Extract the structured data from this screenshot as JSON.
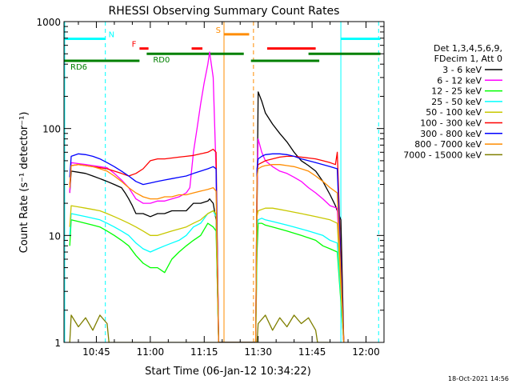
{
  "chart_data": {
    "type": "line",
    "title": "RHESSI Observing Summary Count Rates",
    "xlabel": "Start Time (06-Jan-12 10:34:22)",
    "ylabel": "Count Rate (s⁻¹ detector⁻¹)",
    "y_scale": "log",
    "ylim": [
      1,
      1000
    ],
    "xlim": [
      36,
      125
    ],
    "xlim_units": "minutes after 10:00 UT, 06-Jan-12",
    "xticks": [
      {
        "value": 45,
        "label": "10:45"
      },
      {
        "value": 60,
        "label": "11:00"
      },
      {
        "value": 75,
        "label": "11:15"
      },
      {
        "value": 90,
        "label": "11:30"
      },
      {
        "value": 105,
        "label": "11:45"
      },
      {
        "value": 120,
        "label": "12:00"
      }
    ],
    "yticks": [
      {
        "value": 1,
        "label": "1"
      },
      {
        "value": 10,
        "label": "10"
      },
      {
        "value": 100,
        "label": "100"
      },
      {
        "value": 1000,
        "label": "1000"
      }
    ],
    "legend": {
      "placement": "right",
      "header": [
        "Det 1,3,4,5,6,9,",
        "FDecim 1, Att 0"
      ]
    },
    "timestamp": "18-Oct-2021 14:56",
    "series": [
      {
        "name": "3 - 6 keV",
        "color": "#000000",
        "x": [
          37.6,
          38,
          40,
          42,
          44,
          46,
          48,
          50,
          52,
          53,
          54,
          55,
          56,
          58,
          60,
          62,
          64,
          66,
          68,
          70,
          72,
          74,
          76,
          76.5,
          77.5,
          78.3,
          79,
          80,
          86,
          89.3,
          89.7,
          90,
          91,
          92,
          94,
          96,
          98,
          100,
          102,
          104,
          106,
          108,
          110,
          111.5,
          112,
          113,
          113.8
        ],
        "y": [
          25,
          40,
          39,
          38,
          36,
          34,
          32,
          30,
          28,
          25,
          22,
          19,
          16,
          16,
          15,
          16,
          16,
          17,
          17,
          17,
          20,
          20,
          21,
          22,
          20,
          14,
          1,
          1,
          1,
          1,
          17,
          220,
          180,
          140,
          110,
          90,
          75,
          60,
          50,
          45,
          40,
          32,
          24,
          19,
          17,
          14,
          1
        ]
      },
      {
        "name": "6 - 12 keV",
        "color": "#ff00ff",
        "x": [
          37.6,
          38,
          40,
          42,
          44,
          46,
          48,
          50,
          52,
          54,
          56,
          58,
          60,
          62,
          64,
          66,
          68,
          70,
          71,
          72,
          73,
          74,
          75,
          76,
          76.5,
          77.5,
          78.3,
          79,
          80,
          86,
          89.3,
          89.7,
          90,
          91,
          92,
          94,
          96,
          98,
          100,
          102,
          104,
          106,
          108,
          110,
          112,
          113.8
        ],
        "y": [
          25,
          48,
          47,
          46,
          45,
          44,
          43,
          38,
          33,
          28,
          22,
          20,
          20,
          21,
          21,
          22,
          23,
          25,
          28,
          60,
          100,
          170,
          270,
          400,
          520,
          300,
          40,
          1,
          1,
          1,
          1,
          25,
          80,
          60,
          50,
          44,
          40,
          38,
          35,
          32,
          28,
          25,
          22,
          19,
          18,
          1
        ]
      },
      {
        "name": "12 - 25 keV",
        "color": "#00ff00",
        "x": [
          37.6,
          38,
          40,
          42,
          44,
          46,
          48,
          50,
          52,
          54,
          56,
          58,
          60,
          62,
          64,
          66,
          68,
          70,
          72,
          74,
          76,
          77.5,
          78.3,
          79,
          80,
          86,
          89.3,
          89.7,
          90,
          91,
          92,
          94,
          96,
          98,
          100,
          102,
          104,
          106,
          108,
          110,
          112,
          113.8
        ],
        "y": [
          8,
          14,
          13.5,
          13,
          12.5,
          12,
          11,
          10,
          9,
          8,
          6.5,
          5.5,
          5,
          5,
          4.5,
          6,
          7,
          8,
          9,
          10,
          13,
          12,
          11,
          1,
          1,
          1,
          1,
          7,
          13,
          13,
          12.5,
          12,
          11.5,
          11,
          10.5,
          10,
          9.5,
          9,
          8,
          7.5,
          7,
          1
        ]
      },
      {
        "name": "25 - 50 keV",
        "color": "#00ffff",
        "x": [
          37.6,
          38,
          40,
          42,
          44,
          46,
          48,
          50,
          52,
          54,
          56,
          58,
          60,
          62,
          64,
          66,
          68,
          70,
          72,
          74,
          76,
          77.5,
          78.3,
          79,
          80,
          86,
          89.3,
          89.7,
          90,
          91,
          92,
          94,
          96,
          98,
          100,
          102,
          104,
          106,
          108,
          110,
          112,
          113.8
        ],
        "y": [
          10,
          16,
          15.5,
          15,
          14.5,
          14,
          13,
          12,
          11,
          10,
          8.5,
          7.5,
          7,
          7.5,
          8,
          8.5,
          9,
          10,
          12,
          13,
          16,
          17,
          15,
          1,
          1,
          1,
          1,
          12,
          14,
          14.5,
          14,
          13.5,
          13,
          12.5,
          12,
          11.5,
          11,
          10.5,
          10,
          9,
          8.5,
          1
        ]
      },
      {
        "name": "50 - 100 keV",
        "color": "#c8c800",
        "x": [
          37.6,
          38,
          40,
          42,
          44,
          46,
          48,
          50,
          52,
          54,
          56,
          58,
          60,
          62,
          64,
          66,
          68,
          70,
          72,
          74,
          76,
          77.5,
          78.3,
          79,
          80,
          86,
          89.3,
          89.7,
          90,
          91,
          92,
          94,
          96,
          98,
          100,
          102,
          104,
          106,
          108,
          110,
          112,
          113.8
        ],
        "y": [
          12,
          19,
          18.5,
          18,
          17.5,
          17,
          16,
          15,
          14,
          13,
          12,
          11,
          10,
          10,
          10.5,
          11,
          11.5,
          12,
          13,
          14,
          16,
          17,
          16,
          1,
          1,
          1,
          1,
          15,
          17,
          17.5,
          18,
          18,
          17.5,
          17,
          16.5,
          16,
          15.5,
          15,
          14.5,
          14,
          13,
          1
        ]
      },
      {
        "name": "100 - 300 keV",
        "color": "#ff0000",
        "x": [
          37.6,
          38,
          40,
          42,
          44,
          46,
          48,
          50,
          52,
          54,
          56,
          58,
          60,
          62,
          64,
          66,
          68,
          70,
          72,
          74,
          76,
          77.5,
          78.3,
          79,
          80,
          86,
          89.3,
          89.7,
          90,
          91,
          92,
          94,
          96,
          98,
          100,
          102,
          104,
          106,
          108,
          110,
          111.5,
          112,
          113.8
        ],
        "y": [
          30,
          45,
          46,
          45,
          44,
          43,
          42,
          40,
          38,
          36,
          38,
          42,
          50,
          52,
          52,
          53,
          54,
          55,
          56,
          58,
          60,
          64,
          60,
          1,
          1,
          1,
          1,
          40,
          46,
          48,
          50,
          52,
          54,
          55,
          55,
          54,
          53,
          52,
          50,
          48,
          46,
          60,
          1
        ]
      },
      {
        "name": "300 - 800 keV",
        "color": "#0000ff",
        "x": [
          37.6,
          38,
          40,
          42,
          44,
          46,
          48,
          50,
          52,
          54,
          56,
          58,
          60,
          62,
          64,
          66,
          68,
          70,
          72,
          74,
          76,
          77.5,
          78.3,
          79,
          80,
          86,
          89.3,
          89.7,
          90,
          91,
          92,
          94,
          96,
          98,
          100,
          102,
          104,
          106,
          108,
          110,
          112,
          113.8
        ],
        "y": [
          35,
          55,
          58,
          57,
          55,
          52,
          48,
          44,
          40,
          36,
          32,
          30,
          31,
          32,
          33,
          34,
          35,
          36,
          38,
          40,
          42,
          44,
          42,
          1,
          1,
          1,
          1,
          42,
          52,
          55,
          57,
          58,
          58,
          57,
          55,
          52,
          50,
          48,
          46,
          44,
          42,
          1
        ]
      },
      {
        "name": "800 - 7000 keV",
        "color": "#ff8c00",
        "x": [
          37.6,
          38,
          40,
          42,
          44,
          46,
          48,
          50,
          52,
          54,
          56,
          58,
          60,
          62,
          64,
          66,
          68,
          70,
          72,
          74,
          76,
          77.5,
          78.3,
          79,
          80,
          86,
          89.3,
          89.7,
          90,
          91,
          92,
          94,
          96,
          98,
          100,
          102,
          104,
          106,
          108,
          110,
          112,
          113.8
        ],
        "y": [
          28,
          45,
          46,
          45,
          44,
          42,
          40,
          36,
          32,
          28,
          25,
          23,
          22,
          22,
          23,
          23,
          24,
          24,
          25,
          26,
          27,
          28,
          26,
          1,
          1,
          1,
          1,
          35,
          42,
          44,
          45,
          46,
          46,
          45,
          44,
          42,
          40,
          36,
          32,
          28,
          25,
          1
        ]
      },
      {
        "name": "7000 - 15000 keV",
        "color": "#7f7f00",
        "x": [
          37.6,
          38,
          40,
          42,
          44,
          46,
          48,
          48.5,
          49,
          50,
          86,
          88,
          89.7,
          90,
          92,
          94,
          96,
          98,
          100,
          102,
          104,
          106,
          106.5,
          107,
          110
        ],
        "y": [
          1,
          1.8,
          1.4,
          1.7,
          1.3,
          1.8,
          1.5,
          1,
          1,
          1,
          1,
          1,
          1,
          1.5,
          1.8,
          1.3,
          1.7,
          1.4,
          1.8,
          1.5,
          1.7,
          1.3,
          1,
          1,
          1
        ]
      }
    ],
    "annotations": [
      {
        "label": "N",
        "color": "#00ffff",
        "segments": [
          [
            36,
            47.5
          ],
          [
            113,
            124
          ]
        ],
        "level": 690
      },
      {
        "label": "F",
        "color": "#ff0000",
        "segments": [
          [
            57,
            59.5
          ]
        ],
        "level": 560
      },
      {
        "label": "",
        "color": "#ff0000",
        "segments": [
          [
            71.5,
            74.5
          ],
          [
            92.5,
            106
          ]
        ],
        "level": 560
      },
      {
        "label": "S",
        "color": "#ff8c00",
        "segments": [
          [
            80.5,
            87.5
          ]
        ],
        "level": 760
      },
      {
        "label": "RD0",
        "color": "#008000",
        "segments": [
          [
            59,
            86
          ],
          [
            104,
            124
          ]
        ],
        "level": 500
      },
      {
        "label": "RD6",
        "color": "#008000",
        "segments": [
          [
            36,
            57
          ],
          [
            88,
            107
          ]
        ],
        "level": 430
      }
    ],
    "vertical_lines": [
      {
        "x": 36.2,
        "color": "#00ffff",
        "style": "solid"
      },
      {
        "x": 47.5,
        "color": "#00ffff",
        "style": "dashed"
      },
      {
        "x": 80.5,
        "color": "#ff8c00",
        "style": "solid"
      },
      {
        "x": 88.7,
        "color": "#ff8c00",
        "style": "dashed"
      },
      {
        "x": 113,
        "color": "#00ffff",
        "style": "solid"
      },
      {
        "x": 123.5,
        "color": "#00ffff",
        "style": "dashed"
      }
    ]
  }
}
